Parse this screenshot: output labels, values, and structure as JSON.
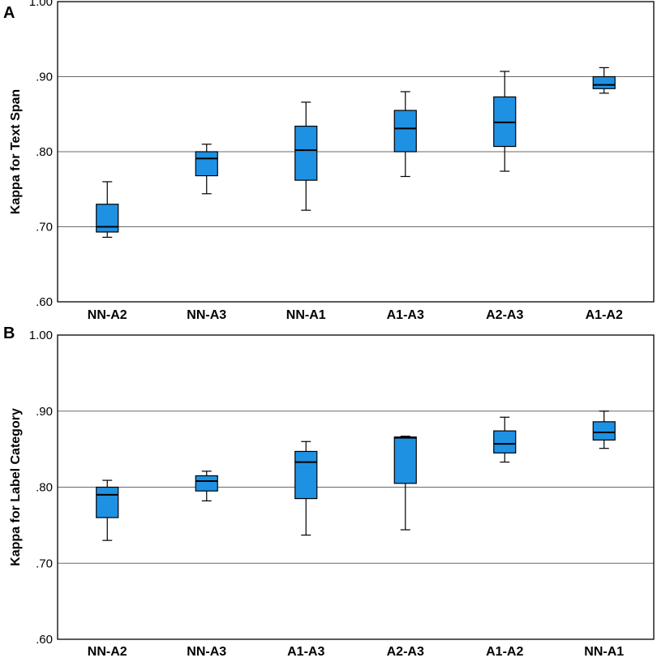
{
  "chart_data": [
    {
      "panel": "A",
      "type": "box",
      "ylabel": "Kappa for Text Span",
      "xlabel": "",
      "ylim": [
        0.6,
        1.0
      ],
      "yticks": [
        0.6,
        0.7,
        0.8,
        0.9,
        1.0
      ],
      "ytick_labels": [
        ".60",
        ".70",
        ".80",
        ".90",
        "1.00"
      ],
      "grid": true,
      "categories": [
        "NN-A2",
        "NN-A3",
        "NN-A1",
        "A1-A3",
        "A2-A3",
        "A1-A2"
      ],
      "boxes": [
        {
          "min": 0.686,
          "q1": 0.693,
          "median": 0.7,
          "q3": 0.73,
          "max": 0.76
        },
        {
          "min": 0.744,
          "q1": 0.768,
          "median": 0.791,
          "q3": 0.8,
          "max": 0.81
        },
        {
          "min": 0.722,
          "q1": 0.762,
          "median": 0.802,
          "q3": 0.834,
          "max": 0.866
        },
        {
          "min": 0.767,
          "q1": 0.8,
          "median": 0.831,
          "q3": 0.855,
          "max": 0.88
        },
        {
          "min": 0.774,
          "q1": 0.807,
          "median": 0.839,
          "q3": 0.873,
          "max": 0.907
        },
        {
          "min": 0.878,
          "q1": 0.884,
          "median": 0.889,
          "q3": 0.9,
          "max": 0.912
        }
      ]
    },
    {
      "panel": "B",
      "type": "box",
      "ylabel": "Kappa for Label Category",
      "xlabel": "",
      "ylim": [
        0.6,
        1.0
      ],
      "yticks": [
        0.6,
        0.7,
        0.8,
        0.9,
        1.0
      ],
      "ytick_labels": [
        ".60",
        ".70",
        ".80",
        ".90",
        "1.00"
      ],
      "grid": true,
      "categories": [
        "NN-A2",
        "NN-A3",
        "A1-A3",
        "A2-A3",
        "A1-A2",
        "NN-A1"
      ],
      "boxes": [
        {
          "min": 0.73,
          "q1": 0.76,
          "median": 0.79,
          "q3": 0.8,
          "max": 0.809
        },
        {
          "min": 0.782,
          "q1": 0.795,
          "median": 0.808,
          "q3": 0.815,
          "max": 0.821
        },
        {
          "min": 0.737,
          "q1": 0.785,
          "median": 0.833,
          "q3": 0.847,
          "max": 0.86
        },
        {
          "min": 0.744,
          "q1": 0.805,
          "median": 0.865,
          "q3": 0.866,
          "max": 0.867
        },
        {
          "min": 0.833,
          "q1": 0.845,
          "median": 0.857,
          "q3": 0.874,
          "max": 0.892
        },
        {
          "min": 0.851,
          "q1": 0.862,
          "median": 0.872,
          "q3": 0.886,
          "max": 0.9
        }
      ]
    }
  ],
  "style": {
    "box_fill": "#1f91e3",
    "grid_color": "#6a6a6a",
    "frame_color": "#000000"
  }
}
